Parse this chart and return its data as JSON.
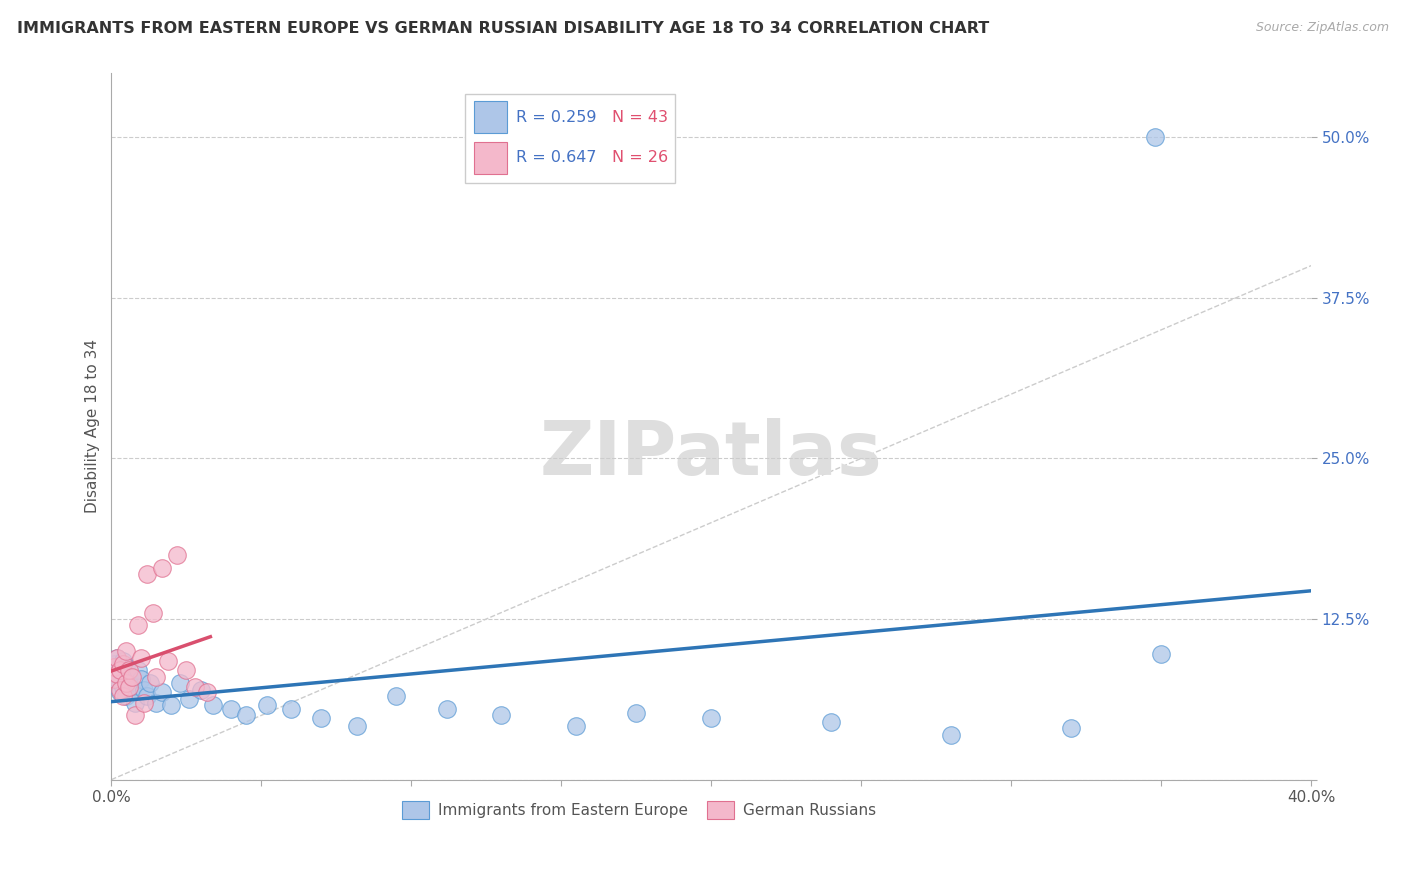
{
  "title": "IMMIGRANTS FROM EASTERN EUROPE VS GERMAN RUSSIAN DISABILITY AGE 18 TO 34 CORRELATION CHART",
  "source": "Source: ZipAtlas.com",
  "ylabel": "Disability Age 18 to 34",
  "xlim": [
    0.0,
    0.4
  ],
  "ylim": [
    0.0,
    0.55
  ],
  "yticks": [
    0.0,
    0.125,
    0.25,
    0.375,
    0.5
  ],
  "ytick_labels": [
    "",
    "12.5%",
    "25.0%",
    "37.5%",
    "50.0%"
  ],
  "blue_R": 0.259,
  "blue_N": 43,
  "pink_R": 0.647,
  "pink_N": 26,
  "blue_color": "#aec6e8",
  "blue_edge_color": "#5b9bd5",
  "blue_line_color": "#2e75b6",
  "pink_color": "#f4b8cb",
  "pink_edge_color": "#e07090",
  "pink_line_color": "#d94f6e",
  "blue_legend_label": "Immigrants from Eastern Europe",
  "pink_legend_label": "German Russians",
  "background_color": "#ffffff",
  "title_fontsize": 11.5,
  "axis_label_fontsize": 11,
  "tick_fontsize": 11,
  "blue_scatter_x": [
    0.001,
    0.001,
    0.002,
    0.002,
    0.003,
    0.003,
    0.004,
    0.004,
    0.005,
    0.005,
    0.006,
    0.006,
    0.007,
    0.008,
    0.009,
    0.01,
    0.011,
    0.012,
    0.013,
    0.015,
    0.017,
    0.02,
    0.023,
    0.026,
    0.03,
    0.034,
    0.04,
    0.045,
    0.052,
    0.06,
    0.07,
    0.082,
    0.095,
    0.112,
    0.13,
    0.155,
    0.175,
    0.2,
    0.24,
    0.28,
    0.32,
    0.35,
    0.348
  ],
  "blue_scatter_y": [
    0.09,
    0.082,
    0.078,
    0.095,
    0.085,
    0.068,
    0.092,
    0.072,
    0.088,
    0.065,
    0.08,
    0.075,
    0.07,
    0.06,
    0.085,
    0.078,
    0.07,
    0.065,
    0.075,
    0.06,
    0.068,
    0.058,
    0.075,
    0.063,
    0.07,
    0.058,
    0.055,
    0.05,
    0.058,
    0.055,
    0.048,
    0.042,
    0.065,
    0.055,
    0.05,
    0.042,
    0.052,
    0.048,
    0.045,
    0.035,
    0.04,
    0.098,
    0.5
  ],
  "pink_scatter_x": [
    0.001,
    0.001,
    0.002,
    0.002,
    0.003,
    0.003,
    0.004,
    0.004,
    0.005,
    0.005,
    0.006,
    0.006,
    0.007,
    0.008,
    0.009,
    0.01,
    0.011,
    0.012,
    0.014,
    0.015,
    0.017,
    0.019,
    0.022,
    0.025,
    0.028,
    0.032
  ],
  "pink_scatter_y": [
    0.078,
    0.088,
    0.082,
    0.095,
    0.085,
    0.07,
    0.09,
    0.065,
    0.1,
    0.075,
    0.072,
    0.085,
    0.08,
    0.05,
    0.12,
    0.095,
    0.06,
    0.16,
    0.13,
    0.08,
    0.165,
    0.092,
    0.175,
    0.085,
    0.072,
    0.068
  ]
}
